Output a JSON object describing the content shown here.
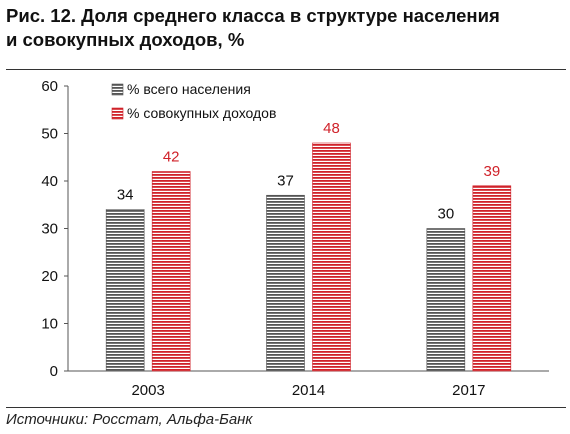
{
  "title_line1": "Рис. 12. Доля среднего класса в структуре населения",
  "title_line2": "и совокупных доходов, %",
  "source": "Источники: Росстат, Альфа-Банк",
  "colors": {
    "series1": "#555555",
    "series2": "#d0222a",
    "series2_label": "#d0222a"
  },
  "chart_data": {
    "type": "bar",
    "categories": [
      "2003",
      "2014",
      "2017"
    ],
    "series": [
      {
        "name": "% всего населения",
        "values": [
          34,
          37,
          30
        ]
      },
      {
        "name": "% совокупных доходов",
        "values": [
          42,
          48,
          39
        ]
      }
    ],
    "y_ticks": [
      0,
      10,
      20,
      30,
      40,
      50,
      60
    ],
    "ylim": [
      0,
      60
    ],
    "legend_position": "top-left",
    "grid": false
  }
}
